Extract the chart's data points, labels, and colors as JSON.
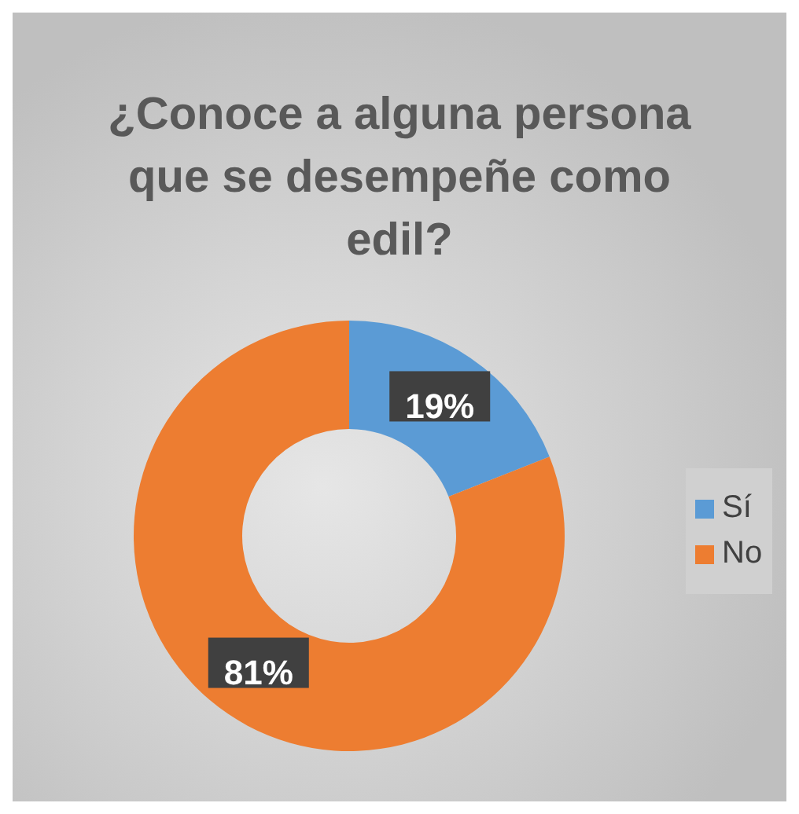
{
  "chart_data": {
    "type": "donut",
    "title": "¿Conoce a alguna persona que se desempeñe como edil?",
    "categories": [
      "Sí",
      "No"
    ],
    "values": [
      19,
      81
    ],
    "colors": [
      "#5b9bd5",
      "#ed7d31"
    ],
    "value_labels": [
      "19%",
      "81%"
    ],
    "legend": "right"
  }
}
